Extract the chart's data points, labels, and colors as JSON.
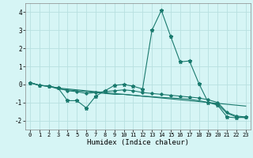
{
  "title": "",
  "xlabel": "Humidex (Indice chaleur)",
  "ylabel": "",
  "background_color": "#d6f5f5",
  "grid_color": "#b8e0e0",
  "line_color": "#1a7a6e",
  "x_values": [
    0,
    1,
    2,
    3,
    4,
    5,
    6,
    7,
    8,
    9,
    10,
    11,
    12,
    13,
    14,
    15,
    16,
    17,
    18,
    19,
    20,
    21,
    22,
    23
  ],
  "series1": [
    0.1,
    -0.05,
    -0.1,
    -0.2,
    -0.9,
    -0.9,
    -1.3,
    -0.65,
    -0.35,
    -0.05,
    0.0,
    -0.1,
    -0.25,
    3.0,
    4.1,
    2.65,
    1.25,
    1.3,
    0.05,
    -1.0,
    -1.15,
    -1.8,
    -1.85,
    -1.8
  ],
  "series2": [
    0.1,
    -0.05,
    -0.1,
    -0.2,
    -0.25,
    -0.3,
    -0.35,
    -0.4,
    -0.45,
    -0.5,
    -0.55,
    -0.6,
    -0.65,
    -0.7,
    -0.75,
    -0.8,
    -0.85,
    -0.9,
    -0.95,
    -1.0,
    -1.05,
    -1.1,
    -1.15,
    -1.2
  ],
  "series3": [
    0.1,
    -0.05,
    -0.1,
    -0.2,
    -0.35,
    -0.4,
    -0.5,
    -0.45,
    -0.4,
    -0.35,
    -0.3,
    -0.35,
    -0.45,
    -0.5,
    -0.55,
    -0.6,
    -0.65,
    -0.7,
    -0.75,
    -0.85,
    -1.0,
    -1.55,
    -1.75,
    -1.8
  ],
  "series4": [
    0.1,
    -0.05,
    -0.1,
    -0.25,
    -0.3,
    -0.35,
    -0.4,
    -0.45,
    -0.5,
    -0.55,
    -0.55,
    -0.6,
    -0.65,
    -0.68,
    -0.72,
    -0.75,
    -0.78,
    -0.82,
    -0.9,
    -1.0,
    -1.1,
    -1.6,
    -1.8,
    -1.85
  ],
  "ylim": [
    -2.5,
    4.5
  ],
  "xlim": [
    -0.5,
    23.5
  ],
  "yticks": [
    -2,
    -1,
    0,
    1,
    2,
    3,
    4
  ],
  "xticks": [
    0,
    1,
    2,
    3,
    4,
    5,
    6,
    7,
    8,
    9,
    10,
    11,
    12,
    13,
    14,
    15,
    16,
    17,
    18,
    19,
    20,
    21,
    22,
    23
  ]
}
